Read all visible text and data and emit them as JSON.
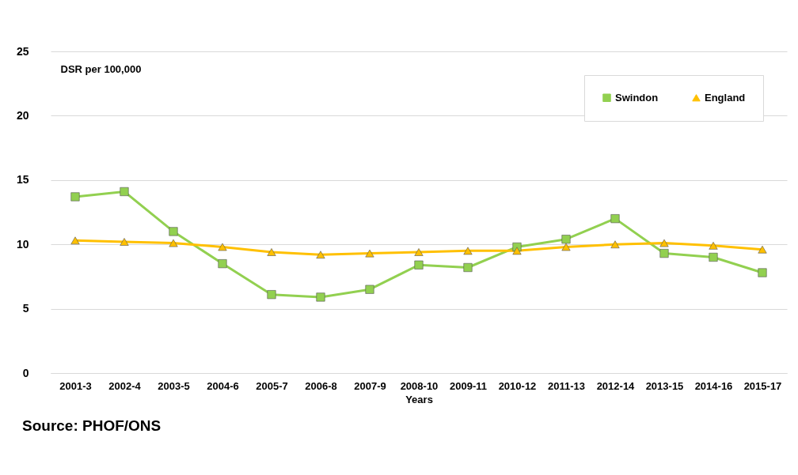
{
  "chart_data": {
    "type": "line",
    "ylabel": "DSR per 100,000",
    "xlabel": "Years",
    "categories": [
      "2001-3",
      "2002-4",
      "2003-5",
      "2004-6",
      "2005-7",
      "2006-8",
      "2007-9",
      "2008-10",
      "2009-11",
      "2010-12",
      "2011-13",
      "2012-14",
      "2013-15",
      "2014-16",
      "2015-17"
    ],
    "series": [
      {
        "name": "Swindon",
        "color": "#92d050",
        "marker": "square",
        "values": [
          13.7,
          14.1,
          11.0,
          8.5,
          6.1,
          5.9,
          6.5,
          8.4,
          8.2,
          9.8,
          10.4,
          12.0,
          9.3,
          9.0,
          7.8
        ]
      },
      {
        "name": "England",
        "color": "#ffc000",
        "marker": "triangle",
        "values": [
          10.3,
          10.2,
          10.1,
          9.8,
          9.4,
          9.2,
          9.3,
          9.4,
          9.5,
          9.5,
          9.8,
          10.0,
          10.1,
          9.9,
          9.6
        ]
      }
    ],
    "ylim": [
      0,
      25
    ],
    "yticks": [
      0,
      5,
      10,
      15,
      20,
      25
    ],
    "grid": "y",
    "legend": "top right",
    "annotations": [
      "Source: PHOF/ONS"
    ]
  }
}
